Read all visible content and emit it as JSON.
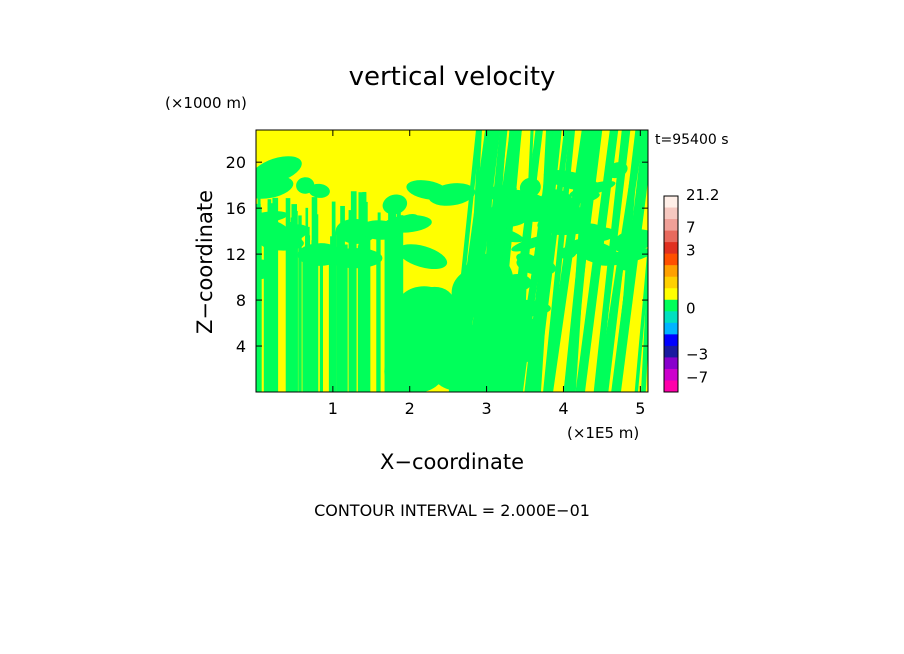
{
  "chart_data": {
    "type": "heatmap",
    "title": "vertical velocity",
    "xlabel": "X−coordinate",
    "ylabel": "Z−coordinate",
    "x_unit": "(×1E5 m)",
    "y_unit": "(×1000 m)",
    "time_label": "t=95400 s",
    "footer": "CONTOUR INTERVAL = 2.000E−01",
    "xlim": [
      0,
      5.1
    ],
    "ylim": [
      0,
      22.8
    ],
    "x_ticks": [
      1,
      2,
      3,
      4,
      5
    ],
    "y_ticks": [
      4,
      8,
      12,
      16,
      20
    ],
    "colorbar": {
      "labels": [
        {
          "text": "21.2",
          "value": 21.2
        },
        {
          "text": "7",
          "value": 7
        },
        {
          "text": "3",
          "value": 3
        },
        {
          "text": "0",
          "value": 0
        },
        {
          "text": "−3",
          "value": -3
        },
        {
          "text": "−7",
          "value": -7
        }
      ],
      "bands": [
        {
          "color": "#ff00aa",
          "from": -10,
          "to": -7
        },
        {
          "color": "#cc00cc",
          "from": -7,
          "to": -5
        },
        {
          "color": "#8800cc",
          "from": -5,
          "to": -3
        },
        {
          "color": "#1a1aa0",
          "from": -3,
          "to": -2
        },
        {
          "color": "#0000ff",
          "from": -2,
          "to": -1
        },
        {
          "color": "#00b4ff",
          "from": -1,
          "to": -0.5
        },
        {
          "color": "#00e0c0",
          "from": -0.5,
          "to": 0
        },
        {
          "color": "#00ff5a",
          "from": 0,
          "to": 0.5
        },
        {
          "color": "#ffff00",
          "from": 0.5,
          "to": 1
        },
        {
          "color": "#ffd000",
          "from": 1,
          "to": 1.5
        },
        {
          "color": "#ffa000",
          "from": 1.5,
          "to": 2
        },
        {
          "color": "#ff5000",
          "from": 2,
          "to": 3
        },
        {
          "color": "#e03020",
          "from": 3,
          "to": 5
        },
        {
          "color": "#e86a5e",
          "from": 5,
          "to": 7
        },
        {
          "color": "#f0a098",
          "from": 7,
          "to": 14
        },
        {
          "color": "#f6c8c0",
          "from": 14,
          "to": 21.2
        },
        {
          "color": "#ffefe8",
          "from": 21.2,
          "to": 28
        }
      ]
    },
    "field_colors": {
      "positive": "#ffff00",
      "negative": "#00ff5a"
    }
  }
}
